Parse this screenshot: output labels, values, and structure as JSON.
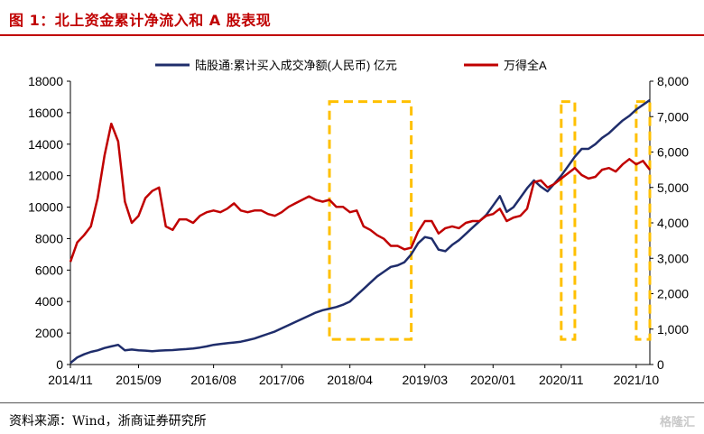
{
  "header": {
    "title": "图 1：北上资金累计净流入和 A 股表现"
  },
  "source": "资料来源：Wind，浙商证券研究所",
  "watermark": "格隆汇",
  "chart_data": {
    "type": "line",
    "legend": {
      "placement": "top"
    },
    "x_ticks": [
      "2014/11",
      "2015/09",
      "2016/08",
      "2017/06",
      "2018/04",
      "2019/03",
      "2020/01",
      "2020/11",
      "2021/10"
    ],
    "y_left": {
      "ticks": [
        0,
        2000,
        4000,
        6000,
        8000,
        10000,
        12000,
        14000,
        16000,
        18000
      ],
      "range": [
        0,
        18000
      ],
      "tick_labels": [
        "0",
        "2000",
        "4000",
        "6000",
        "8000",
        "10000",
        "12000",
        "14000",
        "16000",
        "18000"
      ]
    },
    "y_right": {
      "ticks": [
        0,
        1000,
        2000,
        3000,
        4000,
        5000,
        6000,
        7000,
        8000
      ],
      "range": [
        0,
        8000
      ],
      "tick_labels": [
        "0",
        "1,000",
        "2,000",
        "3,000",
        "4,000",
        "5,000",
        "6,000",
        "7,000",
        "8,000"
      ]
    },
    "series": [
      {
        "name": "陆股通:累计买入成交净额(人民币)  亿元",
        "axis": "left",
        "color": "#1f2d6b",
        "points": [
          [
            "2014/11",
            100
          ],
          [
            "2014/12",
            450
          ],
          [
            "2015/01",
            650
          ],
          [
            "2015/02",
            800
          ],
          [
            "2015/03",
            900
          ],
          [
            "2015/04",
            1050
          ],
          [
            "2015/05",
            1150
          ],
          [
            "2015/06",
            1250
          ],
          [
            "2015/07",
            900
          ],
          [
            "2015/08",
            950
          ],
          [
            "2015/09",
            900
          ],
          [
            "2015/10",
            880
          ],
          [
            "2015/11",
            850
          ],
          [
            "2015/12",
            880
          ],
          [
            "2016/01",
            900
          ],
          [
            "2016/02",
            920
          ],
          [
            "2016/03",
            950
          ],
          [
            "2016/04",
            980
          ],
          [
            "2016/05",
            1020
          ],
          [
            "2016/06",
            1080
          ],
          [
            "2016/07",
            1150
          ],
          [
            "2016/08",
            1250
          ],
          [
            "2016/09",
            1300
          ],
          [
            "2016/10",
            1350
          ],
          [
            "2016/11",
            1400
          ],
          [
            "2016/12",
            1450
          ],
          [
            "2017/01",
            1550
          ],
          [
            "2017/02",
            1650
          ],
          [
            "2017/03",
            1800
          ],
          [
            "2017/04",
            1950
          ],
          [
            "2017/05",
            2100
          ],
          [
            "2017/06",
            2300
          ],
          [
            "2017/07",
            2500
          ],
          [
            "2017/08",
            2700
          ],
          [
            "2017/09",
            2900
          ],
          [
            "2017/10",
            3100
          ],
          [
            "2017/11",
            3300
          ],
          [
            "2017/12",
            3450
          ],
          [
            "2018/01",
            3550
          ],
          [
            "2018/02",
            3650
          ],
          [
            "2018/03",
            3800
          ],
          [
            "2018/04",
            4000
          ],
          [
            "2018/05",
            4400
          ],
          [
            "2018/06",
            4800
          ],
          [
            "2018/07",
            5200
          ],
          [
            "2018/08",
            5600
          ],
          [
            "2018/09",
            5900
          ],
          [
            "2018/10",
            6200
          ],
          [
            "2018/11",
            6300
          ],
          [
            "2018/12",
            6500
          ],
          [
            "2019/01",
            7000
          ],
          [
            "2019/02",
            7700
          ],
          [
            "2019/03",
            8100
          ],
          [
            "2019/04",
            8000
          ],
          [
            "2019/05",
            7300
          ],
          [
            "2019/06",
            7200
          ],
          [
            "2019/07",
            7600
          ],
          [
            "2019/08",
            7900
          ],
          [
            "2019/09",
            8300
          ],
          [
            "2019/10",
            8700
          ],
          [
            "2019/11",
            9100
          ],
          [
            "2019/12",
            9500
          ],
          [
            "2020/01",
            10100
          ],
          [
            "2020/02",
            10700
          ],
          [
            "2020/03",
            9700
          ],
          [
            "2020/04",
            10000
          ],
          [
            "2020/05",
            10600
          ],
          [
            "2020/06",
            11200
          ],
          [
            "2020/07",
            11700
          ],
          [
            "2020/08",
            11300
          ],
          [
            "2020/09",
            11000
          ],
          [
            "2020/10",
            11500
          ],
          [
            "2020/11",
            12000
          ],
          [
            "2020/12",
            12600
          ],
          [
            "2021/01",
            13200
          ],
          [
            "2021/02",
            13700
          ],
          [
            "2021/03",
            13700
          ],
          [
            "2021/04",
            14000
          ],
          [
            "2021/05",
            14400
          ],
          [
            "2021/06",
            14700
          ],
          [
            "2021/07",
            15100
          ],
          [
            "2021/08",
            15500
          ],
          [
            "2021/09",
            15800
          ],
          [
            "2021/10",
            16200
          ],
          [
            "2021/11",
            16500
          ],
          [
            "2021/12",
            16800
          ]
        ]
      },
      {
        "name": "万得全A",
        "axis": "right",
        "color": "#c00000",
        "points": [
          [
            "2014/11",
            2900
          ],
          [
            "2014/12",
            3450
          ],
          [
            "2015/01",
            3650
          ],
          [
            "2015/02",
            3900
          ],
          [
            "2015/03",
            4700
          ],
          [
            "2015/04",
            5900
          ],
          [
            "2015/05",
            6800
          ],
          [
            "2015/06",
            6300
          ],
          [
            "2015/07",
            4600
          ],
          [
            "2015/08",
            4000
          ],
          [
            "2015/09",
            4200
          ],
          [
            "2015/10",
            4700
          ],
          [
            "2015/11",
            4900
          ],
          [
            "2015/12",
            5000
          ],
          [
            "2016/01",
            3900
          ],
          [
            "2016/02",
            3800
          ],
          [
            "2016/03",
            4100
          ],
          [
            "2016/04",
            4100
          ],
          [
            "2016/05",
            4000
          ],
          [
            "2016/06",
            4200
          ],
          [
            "2016/07",
            4300
          ],
          [
            "2016/08",
            4350
          ],
          [
            "2016/09",
            4300
          ],
          [
            "2016/10",
            4400
          ],
          [
            "2016/11",
            4550
          ],
          [
            "2016/12",
            4350
          ],
          [
            "2017/01",
            4300
          ],
          [
            "2017/02",
            4350
          ],
          [
            "2017/03",
            4350
          ],
          [
            "2017/04",
            4250
          ],
          [
            "2017/05",
            4200
          ],
          [
            "2017/06",
            4300
          ],
          [
            "2017/07",
            4450
          ],
          [
            "2017/08",
            4550
          ],
          [
            "2017/09",
            4650
          ],
          [
            "2017/10",
            4750
          ],
          [
            "2017/11",
            4650
          ],
          [
            "2017/12",
            4600
          ],
          [
            "2018/01",
            4650
          ],
          [
            "2018/02",
            4450
          ],
          [
            "2018/03",
            4450
          ],
          [
            "2018/04",
            4300
          ],
          [
            "2018/05",
            4350
          ],
          [
            "2018/06",
            3900
          ],
          [
            "2018/07",
            3800
          ],
          [
            "2018/08",
            3650
          ],
          [
            "2018/09",
            3550
          ],
          [
            "2018/10",
            3350
          ],
          [
            "2018/11",
            3350
          ],
          [
            "2018/12",
            3250
          ],
          [
            "2019/01",
            3300
          ],
          [
            "2019/02",
            3750
          ],
          [
            "2019/03",
            4050
          ],
          [
            "2019/04",
            4050
          ],
          [
            "2019/05",
            3700
          ],
          [
            "2019/06",
            3850
          ],
          [
            "2019/07",
            3900
          ],
          [
            "2019/08",
            3850
          ],
          [
            "2019/09",
            4000
          ],
          [
            "2019/10",
            4050
          ],
          [
            "2019/11",
            4050
          ],
          [
            "2019/12",
            4200
          ],
          [
            "2020/01",
            4250
          ],
          [
            "2020/02",
            4400
          ],
          [
            "2020/03",
            4050
          ],
          [
            "2020/04",
            4150
          ],
          [
            "2020/05",
            4200
          ],
          [
            "2020/06",
            4400
          ],
          [
            "2020/07",
            5150
          ],
          [
            "2020/08",
            5200
          ],
          [
            "2020/09",
            5000
          ],
          [
            "2020/10",
            5100
          ],
          [
            "2020/11",
            5250
          ],
          [
            "2020/12",
            5400
          ],
          [
            "2021/01",
            5550
          ],
          [
            "2021/02",
            5350
          ],
          [
            "2021/03",
            5250
          ],
          [
            "2021/04",
            5300
          ],
          [
            "2021/05",
            5500
          ],
          [
            "2021/06",
            5550
          ],
          [
            "2021/07",
            5450
          ],
          [
            "2021/08",
            5650
          ],
          [
            "2021/09",
            5800
          ],
          [
            "2021/10",
            5650
          ],
          [
            "2021/11",
            5750
          ],
          [
            "2021/12",
            5500
          ]
        ]
      }
    ],
    "highlights": [
      {
        "from": "2018/01",
        "to": "2019/01",
        "color": "#ffc000"
      },
      {
        "from": "2020/11",
        "to": "2021/01",
        "color": "#ffc000"
      },
      {
        "from": "2021/10",
        "to": "2021/12",
        "color": "#ffc000"
      }
    ]
  }
}
